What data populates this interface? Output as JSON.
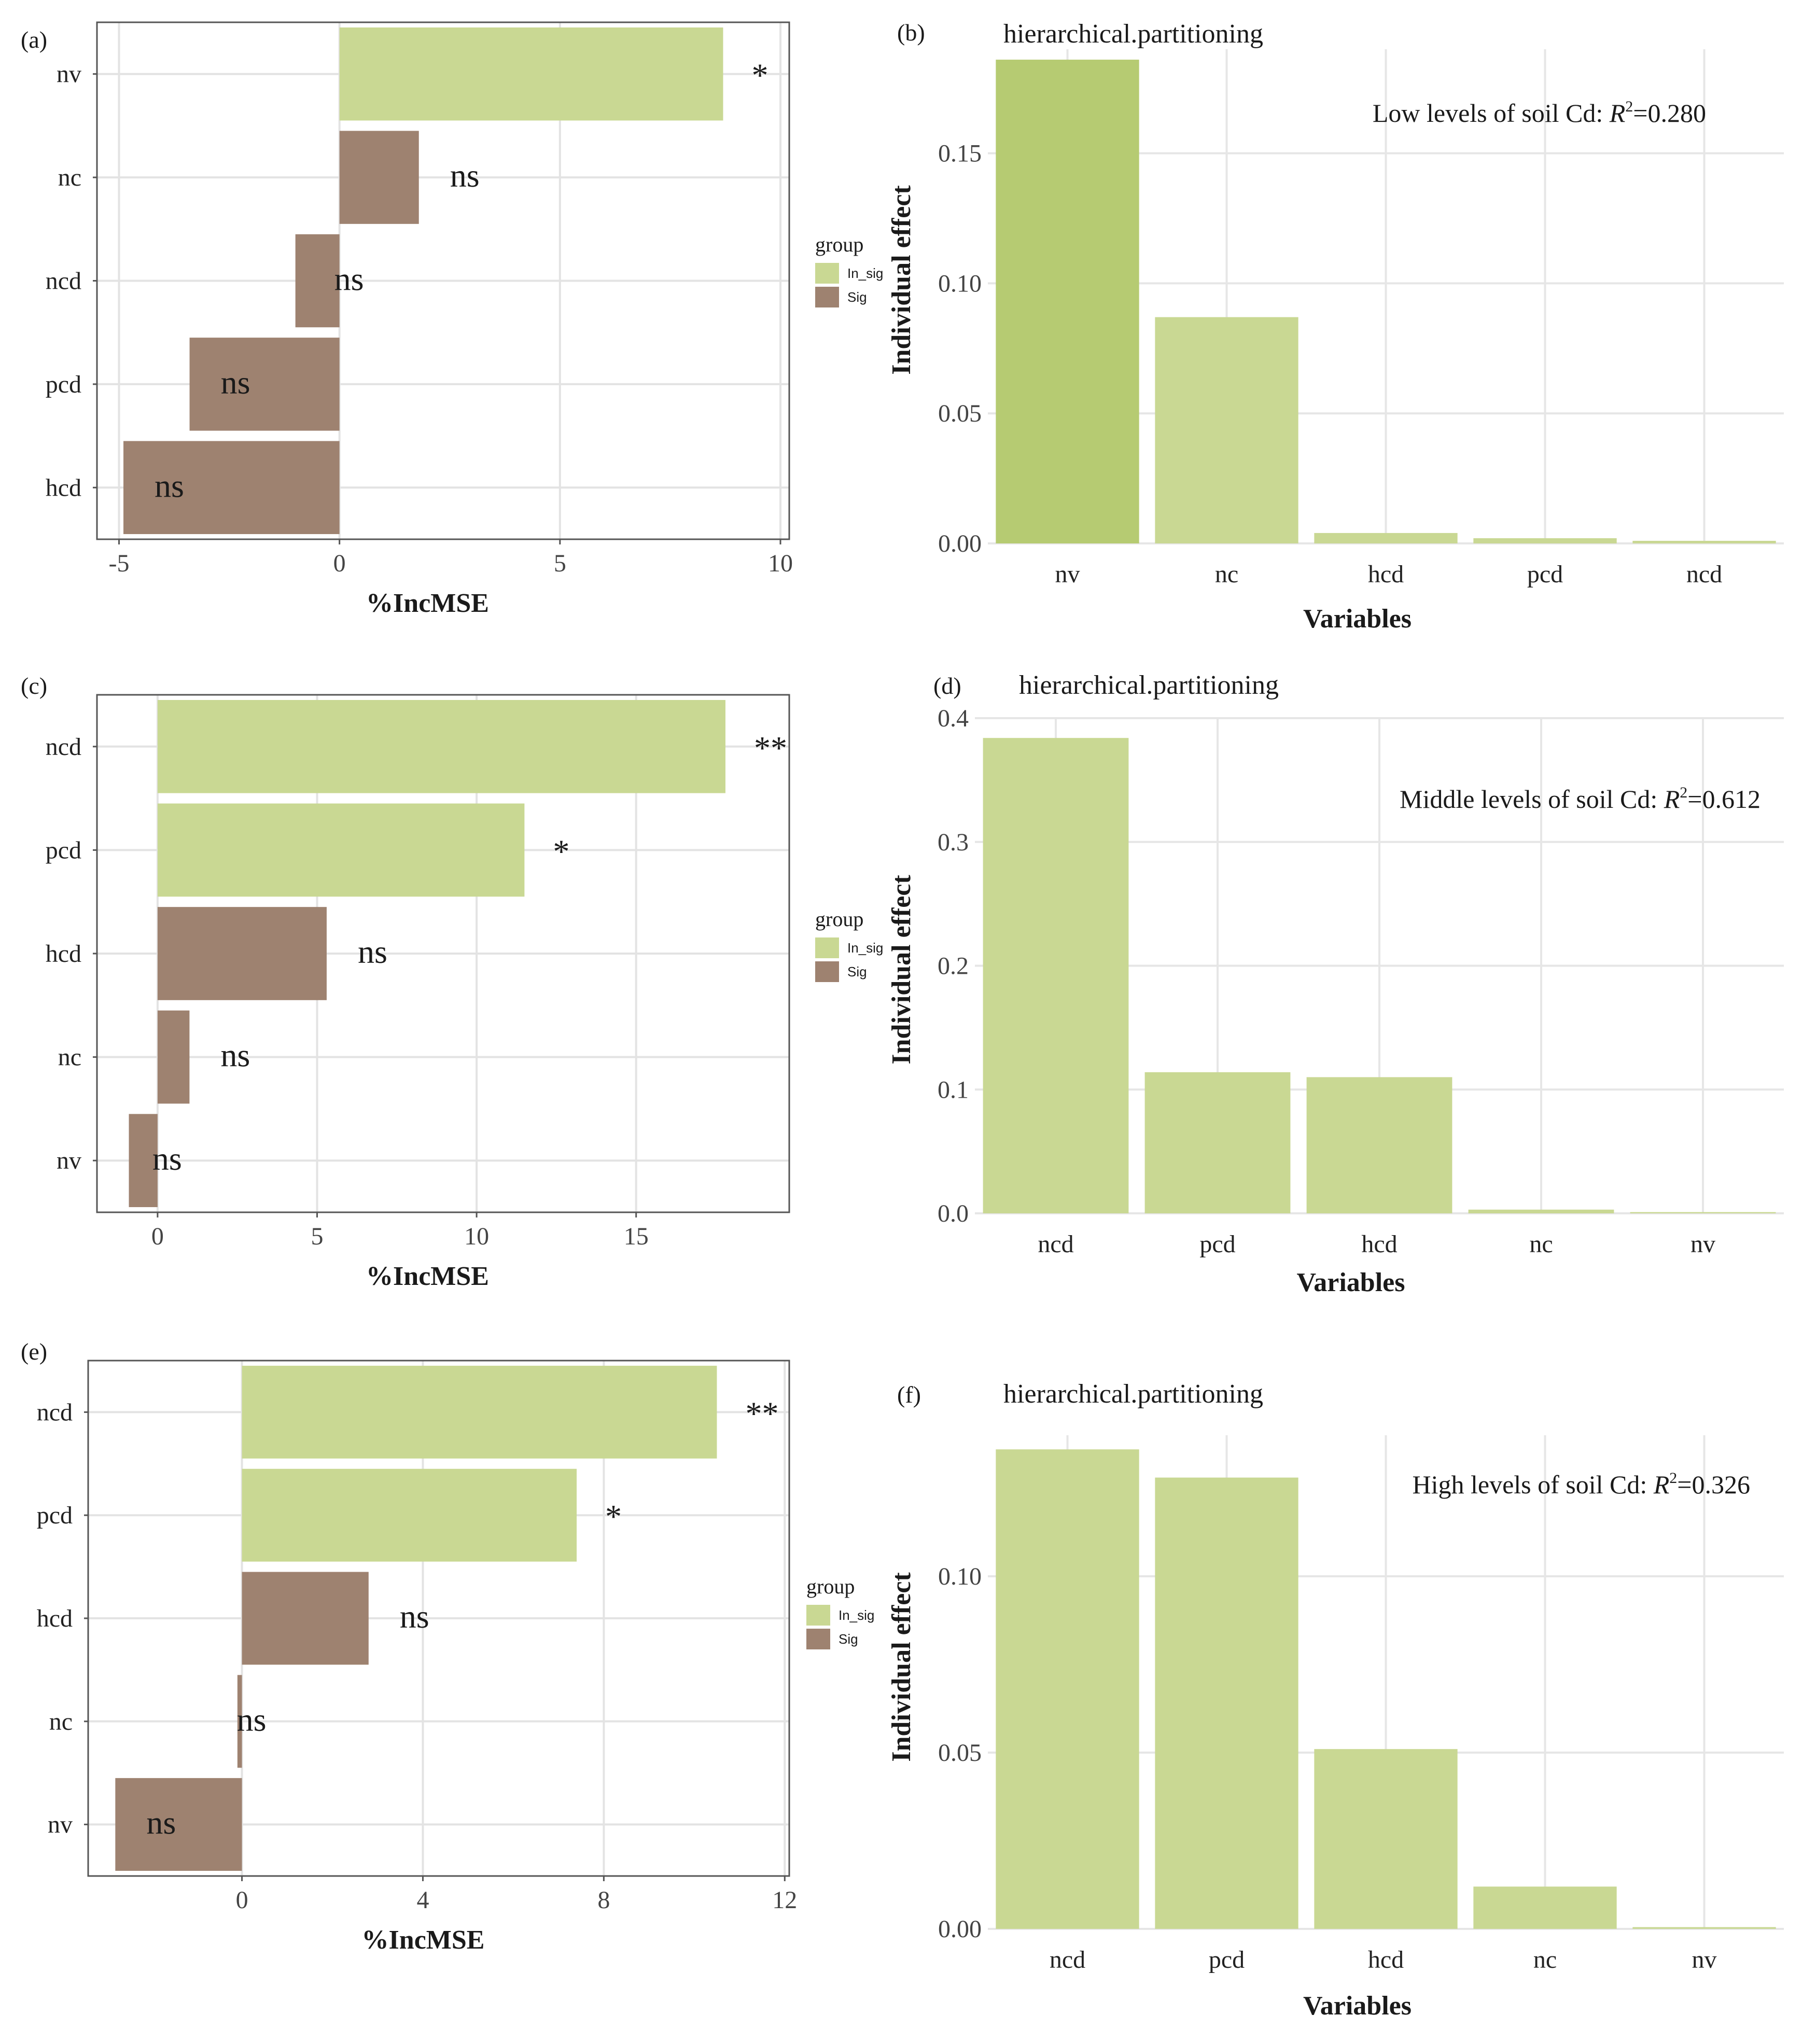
{
  "colors": {
    "in_sig": "#c9d893",
    "sig": "#9e8270",
    "highlight": "#b6cb72"
  },
  "chart_data": [
    {
      "panel": "(a)",
      "type": "bar",
      "orientation": "horizontal",
      "xlabel": "%IncMSE",
      "xlim": [
        -5.5,
        10.2
      ],
      "ticks": [
        -5,
        0,
        5,
        10
      ],
      "categories": [
        "nv",
        "nc",
        "ncd",
        "pcd",
        "hcd"
      ],
      "values": [
        8.7,
        1.8,
        -1.0,
        -3.4,
        -4.9
      ],
      "groups": [
        "In_sig",
        "Sig",
        "Sig",
        "Sig",
        "Sig"
      ],
      "labels": [
        "*",
        "ns",
        "ns",
        "ns",
        "ns"
      ],
      "legend": {
        "title": "group",
        "entries": [
          "In_sig",
          "Sig"
        ]
      }
    },
    {
      "panel": "(b)",
      "type": "bar",
      "orientation": "vertical",
      "title": "hierarchical.partitioning",
      "ylabel": "Individual effect",
      "xlabel": "Variables",
      "ylim": [
        0,
        0.19
      ],
      "ticks": [
        0.0,
        0.05,
        0.1,
        0.15
      ],
      "tick_labels": [
        "0.00",
        "0.05",
        "0.10",
        "0.15"
      ],
      "categories": [
        "nv",
        "nc",
        "hcd",
        "pcd",
        "ncd"
      ],
      "values": [
        0.186,
        0.087,
        0.004,
        0.002,
        0.001
      ],
      "note": "Low levels of soil Cd: ",
      "r2_symbol": "R",
      "r2_sup": "2",
      "r2_value": "=0.280"
    },
    {
      "panel": "(c)",
      "type": "bar",
      "orientation": "horizontal",
      "xlabel": "%IncMSE",
      "xlim": [
        -1.9,
        19.8
      ],
      "ticks": [
        0,
        5,
        10,
        15
      ],
      "categories": [
        "ncd",
        "pcd",
        "hcd",
        "nc",
        "nv"
      ],
      "values": [
        17.8,
        11.5,
        5.3,
        1.0,
        -0.9
      ],
      "groups": [
        "In_sig",
        "In_sig",
        "Sig",
        "Sig",
        "Sig"
      ],
      "labels": [
        "**",
        "*",
        "ns",
        "ns",
        "ns"
      ],
      "legend": {
        "title": "group",
        "entries": [
          "In_sig",
          "Sig"
        ]
      }
    },
    {
      "panel": "(d)",
      "type": "bar",
      "orientation": "vertical",
      "title": "hierarchical.partitioning",
      "ylabel": "Individual effect",
      "xlabel": "Variables",
      "ylim": [
        0,
        0.4
      ],
      "ticks": [
        0.0,
        0.1,
        0.2,
        0.3,
        0.4
      ],
      "tick_labels": [
        "0.0",
        "0.1",
        "0.2",
        "0.3",
        "0.4"
      ],
      "categories": [
        "ncd",
        "pcd",
        "hcd",
        "nc",
        "nv"
      ],
      "values": [
        0.384,
        0.114,
        0.11,
        0.003,
        0.001
      ],
      "note": "Middle levels of soil Cd: ",
      "r2_symbol": "R",
      "r2_sup": "2",
      "r2_value": "=0.612"
    },
    {
      "panel": "(e)",
      "type": "bar",
      "orientation": "horizontal",
      "xlabel": "%IncMSE",
      "xlim": [
        -3.4,
        12.1
      ],
      "ticks": [
        0,
        4,
        8,
        12
      ],
      "categories": [
        "ncd",
        "pcd",
        "hcd",
        "nc",
        "nv"
      ],
      "values": [
        10.5,
        7.4,
        2.8,
        -0.1,
        -2.8
      ],
      "groups": [
        "In_sig",
        "In_sig",
        "Sig",
        "Sig",
        "Sig"
      ],
      "labels": [
        "**",
        "*",
        "ns",
        "ns",
        "ns"
      ],
      "legend": {
        "title": "group",
        "entries": [
          "In_sig",
          "Sig"
        ]
      }
    },
    {
      "panel": "(f)",
      "type": "bar",
      "orientation": "vertical",
      "title": "hierarchical.partitioning",
      "ylabel": "Individual effect",
      "xlabel": "Variables",
      "ylim": [
        0,
        0.14
      ],
      "ticks": [
        0.0,
        0.05,
        0.1
      ],
      "tick_labels": [
        "0.00",
        "0.05",
        "0.10"
      ],
      "categories": [
        "ncd",
        "pcd",
        "hcd",
        "nc",
        "nv"
      ],
      "values": [
        0.136,
        0.128,
        0.051,
        0.012,
        0.0005
      ],
      "note": "High levels of soil Cd: ",
      "r2_symbol": "R",
      "r2_sup": "2",
      "r2_value": "=0.326"
    }
  ]
}
